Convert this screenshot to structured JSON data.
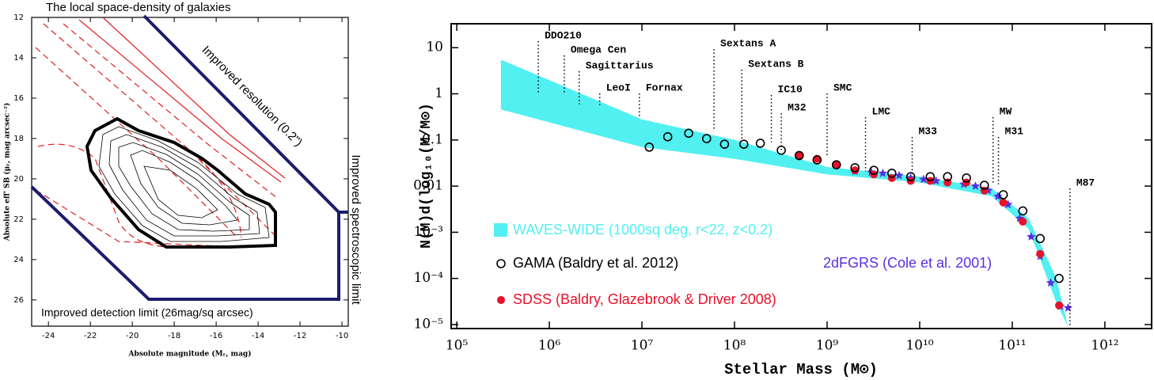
{
  "chart_data": [
    {
      "type": "contour",
      "title": "The local space-density of galaxies",
      "x_label": "Absolute magnitude (Mᵣ, mag)",
      "y_label": "Absolute eff' SB (μᵣ, mag arcsec⁻²)",
      "xlim": [
        -24.8,
        -9.7
      ],
      "ylim": [
        27.3,
        12
      ],
      "xticks": [
        -24,
        -22,
        -20,
        -18,
        -16,
        -14,
        -12,
        -10
      ],
      "yticks": [
        12,
        14,
        16,
        18,
        20,
        22,
        24,
        26
      ],
      "annotations": [
        "Improved resolution (0.2\")",
        "Improved spectroscopic limit",
        "Improved detection limit (26mag/sq arcsec)"
      ]
    },
    {
      "type": "scatter",
      "x_label": "Stellar Mass (M⊙)",
      "y_label": "N(M)d(log₁₀(M/M⊙)",
      "log_x": true,
      "log_y": true,
      "xlim": [
        87000,
        3200000000000
      ],
      "ylim": [
        8.2e-06,
        33
      ],
      "xticks": [
        {
          "value": 100000,
          "label": "10⁵"
        },
        {
          "value": 1000000,
          "label": "10⁶"
        },
        {
          "value": 10000000,
          "label": "10⁷"
        },
        {
          "value": 100000000,
          "label": "10⁸"
        },
        {
          "value": 1000000000,
          "label": "10⁹"
        },
        {
          "value": 10000000000,
          "label": "10¹⁰"
        },
        {
          "value": 100000000000,
          "label": "10¹¹"
        },
        {
          "value": 1000000000000,
          "label": "10¹²"
        }
      ],
      "yticks": [
        10,
        1,
        0.1,
        0.01,
        {
          "value": 0.001,
          "label": "10⁻³"
        },
        {
          "value": 0.0001,
          "label": "10⁻⁴"
        },
        {
          "value": 1e-05,
          "label": "10⁻⁵"
        }
      ],
      "series": [
        {
          "name": "WAVES-WIDE (1000sq deg, r<22, z<0.2)",
          "color": "#52f0f0",
          "marker": "band",
          "x": [
            300000,
            10000000,
            100000000,
            1000000000,
            10000000000,
            60000000000,
            150000000000,
            300000000000,
            400000000000
          ],
          "upper": [
            5.5,
            0.28,
            0.1,
            0.026,
            0.016,
            0.009,
            0.002,
            0.0001,
            9e-06
          ],
          "lower": [
            0.46,
            0.07,
            0.039,
            0.018,
            0.012,
            0.006,
            0.0012,
            3e-05,
            9e-06
          ]
        },
        {
          "name": "GAMA (Baldry et al. 2012)",
          "color": "#000000",
          "marker": "open-circle",
          "x": [
            12000000,
            19000000,
            32000000,
            50000000,
            78000000,
            126000000,
            190000000,
            320000000,
            500000000,
            780000000,
            1260000000,
            2000000000,
            3200000000,
            5000000000,
            8000000000,
            13000000000,
            20000000000,
            32000000000,
            50000000000,
            80000000000,
            130000000000,
            200000000000,
            320000000000
          ],
          "values": [
            0.07,
            0.117,
            0.14,
            0.107,
            0.081,
            0.081,
            0.085,
            0.06,
            0.046,
            0.037,
            0.029,
            0.025,
            0.022,
            0.019,
            0.016,
            0.016,
            0.016,
            0.015,
            0.0104,
            0.0065,
            0.0029,
            0.00073,
            0.0001
          ]
        },
        {
          "name": "SDSS (Baldry, Glazebrook & Driver 2008)",
          "color": "#e8102a",
          "marker": "filled-circle",
          "x": [
            500000000,
            780000000,
            1260000000,
            2000000000,
            3200000000,
            5000000000,
            8000000000,
            13000000000,
            20000000000,
            32000000000,
            50000000000,
            80000000000,
            130000000000,
            200000000000,
            320000000000
          ],
          "values": [
            0.047,
            0.039,
            0.029,
            0.022,
            0.018,
            0.015,
            0.013,
            0.013,
            0.012,
            0.012,
            0.008,
            0.0044,
            0.0017,
            0.00034,
            2.6e-05
          ]
        },
        {
          "name": "2dFGRS (Cole et al. 2001)",
          "color": "#5a2ee6",
          "marker": "star",
          "x": [
            2000000000,
            3000000000,
            4000000000,
            6000000000,
            8000000000,
            11000000000,
            15000000000,
            20000000000,
            30000000000,
            40000000000,
            55000000000,
            70000000000,
            90000000000,
            120000000000,
            160000000000,
            200000000000,
            260000000000,
            330000000000,
            400000000000
          ],
          "values": [
            0.021,
            0.02,
            0.019,
            0.017,
            0.015,
            0.014,
            0.013,
            0.012,
            0.011,
            0.01,
            0.008,
            0.006,
            0.004,
            0.002,
            0.0008,
            0.0003,
            8e-05,
            2.5e-05,
            2.3e-05
          ]
        }
      ],
      "galaxies": [
        {
          "name": "DDO210",
          "mass": 760000,
          "line_to": 1
        },
        {
          "name": "Omega Cen",
          "mass": 1450000,
          "line_to": 1
        },
        {
          "name": "Sagittarius",
          "mass": 2100000,
          "line_to": 0.6
        },
        {
          "name": "LeoI",
          "mass": 3500000,
          "line_to": 0.57
        },
        {
          "name": "Fornax",
          "mass": 9400000,
          "line_to": 0.3
        },
        {
          "name": "Sextans A",
          "mass": 60000000,
          "line_to": 0.155
        },
        {
          "name": "Sextans B",
          "mass": 120000000,
          "line_to": 0.1
        },
        {
          "name": "IC10",
          "mass": 250000000,
          "line_to": 0.09
        },
        {
          "name": "M32",
          "mass": 320000000,
          "line_to": 0.057
        },
        {
          "name": "SMC",
          "mass": 1000000000,
          "line_to": 0.042
        },
        {
          "name": "LMC",
          "mass": 2600000000,
          "line_to": 0.021
        },
        {
          "name": "M33",
          "mass": 8300000000,
          "line_to": 0.017
        },
        {
          "name": "MW",
          "mass": 62000000000,
          "line_to": 0.012
        },
        {
          "name": "M31",
          "mass": 71000000000,
          "line_to": 0.011
        },
        {
          "name": "M87",
          "mass": 420000000000,
          "line_to": 9.3e-06
        }
      ]
    }
  ]
}
